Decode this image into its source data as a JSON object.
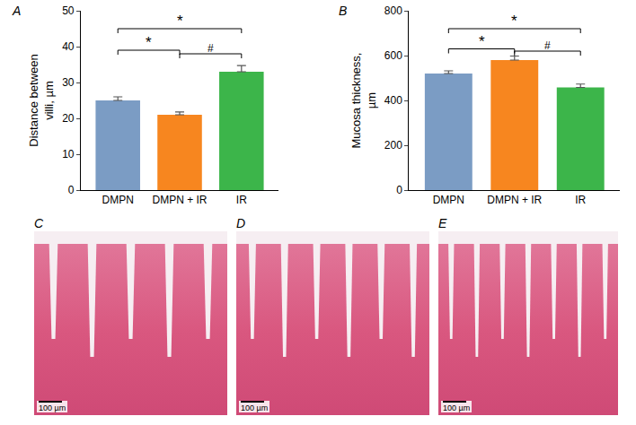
{
  "chart_data": [
    {
      "panel": "A",
      "type": "bar",
      "y_label": "Distance between villi, µm",
      "categories": [
        "DMPN",
        "DMPN + IR",
        "IR"
      ],
      "values": [
        25,
        21,
        33
      ],
      "errors": [
        1,
        0.8,
        1.7
      ],
      "colors": [
        "#7b9cc4",
        "#f7861f",
        "#3cb54a"
      ],
      "ylim": [
        0,
        50
      ],
      "yticks": [
        0,
        10,
        20,
        30,
        40,
        50
      ],
      "grid": false,
      "comparisons": [
        {
          "from": "DMPN",
          "to": "IR",
          "y": 45,
          "text": "*"
        },
        {
          "from": "DMPN",
          "to": "DMPN + IR",
          "y": 39,
          "text": "*"
        },
        {
          "from": "DMPN + IR",
          "to": "IR",
          "y": 38,
          "text": "#"
        }
      ]
    },
    {
      "panel": "B",
      "type": "bar",
      "y_label": "Mucosa thickness, µm",
      "categories": [
        "DMPN",
        "DMPN + IR",
        "IR"
      ],
      "values": [
        520,
        580,
        458
      ],
      "errors": [
        12,
        18,
        15
      ],
      "colors": [
        "#7b9cc4",
        "#f7861f",
        "#3cb54a"
      ],
      "ylim": [
        0,
        800
      ],
      "yticks": [
        0,
        200,
        400,
        600,
        800
      ],
      "grid": false,
      "comparisons": [
        {
          "from": "DMPN",
          "to": "IR",
          "y": 720,
          "text": "*"
        },
        {
          "from": "DMPN",
          "to": "DMPN + IR",
          "y": 630,
          "text": "*"
        },
        {
          "from": "DMPN + IR",
          "to": "IR",
          "y": 620,
          "text": "#"
        }
      ]
    }
  ],
  "images": [
    {
      "panel": "C",
      "scale_bar": "100 µm"
    },
    {
      "panel": "D",
      "scale_bar": "100 µm"
    },
    {
      "panel": "E",
      "scale_bar": "100 µm"
    }
  ]
}
